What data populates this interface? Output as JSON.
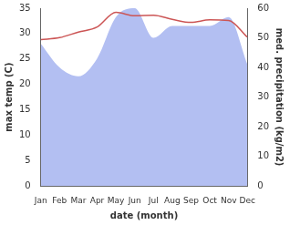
{
  "chart_data": {
    "type": "line",
    "x_label": "date (month)",
    "y_label": "max temp (C)",
    "y2_label": "med. precipitation (kg/m2)",
    "categories": [
      "Jan",
      "Feb",
      "Mar",
      "Apr",
      "May",
      "Jun",
      "Jul",
      "Aug",
      "Sep",
      "Oct",
      "Nov",
      "Dec"
    ],
    "series": [
      {
        "name": "max temp (C)",
        "type": "line",
        "color": "#cc5555",
        "values": [
          28.8,
          29.2,
          30.3,
          31.3,
          34.2,
          33.5,
          33.6,
          32.8,
          32.2,
          32.7,
          32.6,
          29.3
        ]
      },
      {
        "name": "med. precipitation (kg/m2)",
        "type": "area",
        "axis": "y2",
        "color": "#b3bff2",
        "values": [
          48,
          40,
          37,
          43,
          57,
          60,
          50,
          54,
          54,
          54,
          57,
          41
        ]
      }
    ],
    "ylim": [
      0,
      35
    ],
    "yticks": [
      0,
      5,
      10,
      15,
      20,
      25,
      30,
      35
    ],
    "y2lim": [
      0,
      60
    ],
    "y2ticks": [
      0,
      10,
      20,
      30,
      40,
      50,
      60
    ],
    "grid": false
  }
}
